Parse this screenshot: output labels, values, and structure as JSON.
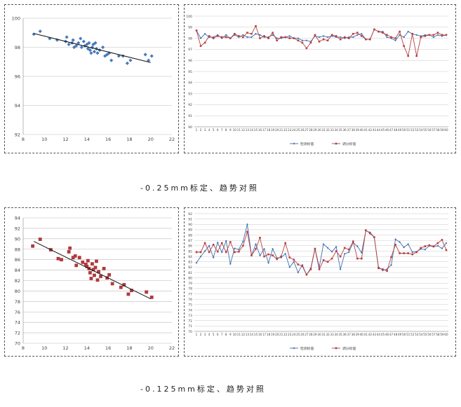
{
  "captions": [
    "-0.25mm标定、趋势对照",
    "-0.125mm标定、趋势对照"
  ],
  "chart_data": [
    {
      "type": "scatter",
      "title": "",
      "xlabel": "",
      "ylabel": "",
      "xlim": [
        8,
        22
      ],
      "ylim": [
        92,
        100
      ],
      "xticks": [
        8,
        10,
        12,
        14,
        16,
        18,
        20,
        22
      ],
      "yticks": [
        92,
        94,
        96,
        98,
        100
      ],
      "grid": true,
      "legend": "none",
      "colors": {
        "points": "#4a7ab8",
        "trend": "#111111",
        "grid": "#bbbbbb"
      },
      "trendline": {
        "x": [
          9,
          20
        ],
        "y": [
          98.95,
          96.95
        ]
      },
      "points": [
        [
          9.0,
          98.9
        ],
        [
          9.6,
          99.1
        ],
        [
          10.5,
          98.6
        ],
        [
          11.2,
          98.5
        ],
        [
          12.0,
          98.4
        ],
        [
          12.1,
          98.7
        ],
        [
          12.3,
          98.2
        ],
        [
          12.6,
          98.3
        ],
        [
          12.7,
          98.5
        ],
        [
          12.8,
          98.0
        ],
        [
          13.0,
          98.1
        ],
        [
          13.2,
          98.3
        ],
        [
          13.4,
          98.6
        ],
        [
          13.5,
          98.0
        ],
        [
          13.7,
          98.4
        ],
        [
          13.8,
          98.1
        ],
        [
          14.0,
          98.2
        ],
        [
          14.1,
          97.9
        ],
        [
          14.2,
          98.3
        ],
        [
          14.3,
          97.8
        ],
        [
          14.4,
          97.6
        ],
        [
          14.5,
          98.0
        ],
        [
          14.6,
          98.2
        ],
        [
          14.7,
          97.7
        ],
        [
          14.8,
          98.3
        ],
        [
          14.9,
          97.9
        ],
        [
          15.0,
          97.6
        ],
        [
          15.2,
          97.8
        ],
        [
          15.5,
          98.0
        ],
        [
          15.7,
          97.4
        ],
        [
          15.9,
          97.5
        ],
        [
          16.1,
          97.6
        ],
        [
          16.3,
          97.1
        ],
        [
          17.0,
          97.4
        ],
        [
          17.4,
          97.4
        ],
        [
          17.8,
          96.9
        ],
        [
          18.1,
          97.1
        ],
        [
          19.5,
          97.5
        ],
        [
          19.8,
          97.1
        ],
        [
          20.1,
          97.4
        ]
      ]
    },
    {
      "type": "line",
      "title": "",
      "xlabel": "",
      "ylabel": "",
      "ylim": [
        90,
        100
      ],
      "yticks": [
        90,
        91,
        92,
        93,
        94,
        95,
        96,
        97,
        98,
        99,
        100
      ],
      "grid": true,
      "legend": "bottom",
      "categories": [
        1,
        2,
        3,
        4,
        5,
        6,
        7,
        8,
        9,
        10,
        11,
        12,
        13,
        14,
        15,
        16,
        17,
        18,
        19,
        20,
        21,
        22,
        23,
        24,
        25,
        26,
        27,
        28,
        29,
        30,
        31,
        32,
        33,
        34,
        35,
        36,
        37,
        38,
        39,
        40,
        41,
        42,
        43,
        44,
        45,
        46,
        47,
        48,
        49,
        50,
        51,
        52,
        53,
        54,
        55,
        56,
        57,
        58,
        59,
        60
      ],
      "series": [
        {
          "name": "检测标值",
          "color": "#3e6fb0",
          "values": [
            98.7,
            98.0,
            98.4,
            98.1,
            98.1,
            98.3,
            98.0,
            98.3,
            98.0,
            98.3,
            98.1,
            98.3,
            98.1,
            98.1,
            98.4,
            98.3,
            98.1,
            98.1,
            98.3,
            98.0,
            98.0,
            98.1,
            98.2,
            98.0,
            98.0,
            97.8,
            97.8,
            97.7,
            98.2,
            98.1,
            98.2,
            98.1,
            98.2,
            98.1,
            98.1,
            98.0,
            98.1,
            98.1,
            98.3,
            98.4,
            97.9,
            97.9,
            98.8,
            98.6,
            98.6,
            98.1,
            98.0,
            97.8,
            98.3,
            98.1,
            98.6,
            98.4,
            98.3,
            98.2,
            98.3,
            98.3,
            98.1,
            98.3,
            98.2,
            98.3
          ]
        },
        {
          "name": "调分标值",
          "color": "#b8403f",
          "values": [
            98.7,
            97.3,
            97.6,
            98.2,
            98.0,
            98.2,
            98.1,
            98.1,
            98.0,
            98.4,
            98.2,
            98.1,
            98.5,
            98.4,
            99.1,
            98.0,
            98.2,
            98.0,
            98.5,
            97.8,
            98.1,
            98.1,
            98.0,
            98.0,
            97.8,
            97.6,
            97.1,
            97.6,
            98.3,
            97.7,
            97.9,
            97.8,
            98.3,
            98.2,
            97.9,
            98.1,
            98.0,
            98.4,
            98.5,
            98.2,
            97.9,
            97.9,
            98.8,
            98.6,
            98.5,
            98.3,
            98.1,
            98.0,
            98.6,
            97.3,
            96.4,
            98.4,
            96.4,
            98.1,
            98.2,
            98.3,
            98.3,
            98.5,
            98.3,
            98.3
          ]
        }
      ]
    },
    {
      "type": "scatter",
      "title": "",
      "xlabel": "",
      "ylabel": "",
      "xlim": [
        8,
        22
      ],
      "ylim": [
        70,
        94
      ],
      "xticks": [
        8,
        10,
        12,
        14,
        16,
        18,
        20,
        22
      ],
      "yticks": [
        70,
        72,
        74,
        76,
        78,
        80,
        82,
        84,
        86,
        88,
        90,
        92,
        94
      ],
      "grid": true,
      "legend": "none",
      "colors": {
        "points": "#b03a3e",
        "trend": "#111111",
        "grid": "#bbbbbb"
      },
      "trendline": {
        "x": [
          9,
          20
        ],
        "y": [
          89.5,
          78.5
        ]
      },
      "points": [
        [
          8.9,
          88.6
        ],
        [
          9.6,
          89.9
        ],
        [
          10.6,
          87.9
        ],
        [
          11.3,
          86.2
        ],
        [
          11.6,
          86.0
        ],
        [
          12.3,
          87.5
        ],
        [
          12.4,
          88.2
        ],
        [
          12.7,
          86.4
        ],
        [
          12.9,
          86.7
        ],
        [
          13.0,
          84.9
        ],
        [
          13.3,
          86.4
        ],
        [
          13.6,
          85.5
        ],
        [
          13.9,
          85.1
        ],
        [
          14.0,
          84.7
        ],
        [
          14.1,
          85.8
        ],
        [
          14.2,
          84.3
        ],
        [
          14.3,
          83.5
        ],
        [
          14.4,
          82.4
        ],
        [
          14.5,
          85.2
        ],
        [
          14.6,
          84.1
        ],
        [
          14.7,
          83.0
        ],
        [
          14.8,
          84.5
        ],
        [
          14.9,
          85.7
        ],
        [
          15.0,
          82.1
        ],
        [
          15.1,
          83.7
        ],
        [
          15.3,
          82.8
        ],
        [
          15.6,
          84.3
        ],
        [
          15.9,
          82.5
        ],
        [
          16.1,
          83.1
        ],
        [
          16.4,
          81.4
        ],
        [
          17.2,
          80.7
        ],
        [
          17.5,
          81.2
        ],
        [
          17.9,
          79.4
        ],
        [
          18.2,
          80.1
        ],
        [
          19.6,
          79.8
        ],
        [
          20.1,
          78.8
        ]
      ]
    },
    {
      "type": "line",
      "title": "",
      "xlabel": "",
      "ylabel": "",
      "ylim": [
        70,
        92
      ],
      "yticks": [
        70,
        71,
        72,
        73,
        74,
        75,
        76,
        77,
        78,
        79,
        80,
        81,
        82,
        83,
        84,
        85,
        86,
        87,
        88,
        89,
        90,
        91,
        92
      ],
      "grid": true,
      "legend": "bottom",
      "categories": [
        1,
        2,
        3,
        4,
        5,
        6,
        7,
        8,
        9,
        10,
        11,
        12,
        13,
        14,
        15,
        16,
        17,
        18,
        19,
        20,
        21,
        22,
        23,
        24,
        25,
        26,
        27,
        28,
        29,
        30,
        31,
        32,
        33,
        34,
        35,
        36,
        37,
        38,
        39,
        40,
        41,
        42,
        43,
        44,
        45,
        46,
        47,
        48,
        49,
        50,
        51,
        52,
        53,
        54,
        55,
        56,
        57,
        58,
        59,
        60
      ],
      "series": [
        {
          "name": "检测标值",
          "color": "#3e6fb0",
          "values": [
            82.8,
            84.0,
            85.0,
            86.0,
            83.8,
            86.6,
            84.8,
            86.9,
            82.6,
            85.5,
            85.3,
            86.8,
            90.0,
            84.2,
            86.3,
            84.2,
            85.4,
            82.8,
            85.4,
            83.7,
            83.8,
            84.5,
            82.0,
            83.0,
            81.0,
            82.4,
            80.6,
            81.8,
            85.5,
            82.0,
            86.3,
            85.6,
            84.9,
            85.8,
            81.6,
            84.5,
            84.8,
            86.6,
            85.9,
            84.7,
            88.8,
            88.5,
            87.6,
            82.0,
            81.4,
            81.6,
            82.4,
            87.2,
            86.7,
            85.7,
            86.3,
            84.8,
            84.9,
            85.4,
            85.3,
            86.0,
            85.8,
            86.0,
            85.5,
            86.5
          ]
        },
        {
          "name": "调分标值",
          "color": "#b8403f",
          "values": [
            84.8,
            84.8,
            86.5,
            84.8,
            86.2,
            84.9,
            86.5,
            84.8,
            86.7,
            84.8,
            84.9,
            86.0,
            88.6,
            84.2,
            85.4,
            87.5,
            84.0,
            84.4,
            84.2,
            83.5,
            84.0,
            86.5,
            83.8,
            83.4,
            82.5,
            82.2,
            80.6,
            81.6,
            85.4,
            81.6,
            83.3,
            83.0,
            83.6,
            85.0,
            84.0,
            85.6,
            85.3,
            86.8,
            83.6,
            83.6,
            88.9,
            88.3,
            87.6,
            81.8,
            81.6,
            81.3,
            83.9,
            86.2,
            84.6,
            84.6,
            84.6,
            84.4,
            84.8,
            85.6,
            85.9,
            86.1,
            85.9,
            86.5,
            87.1,
            85.2
          ]
        }
      ]
    }
  ]
}
